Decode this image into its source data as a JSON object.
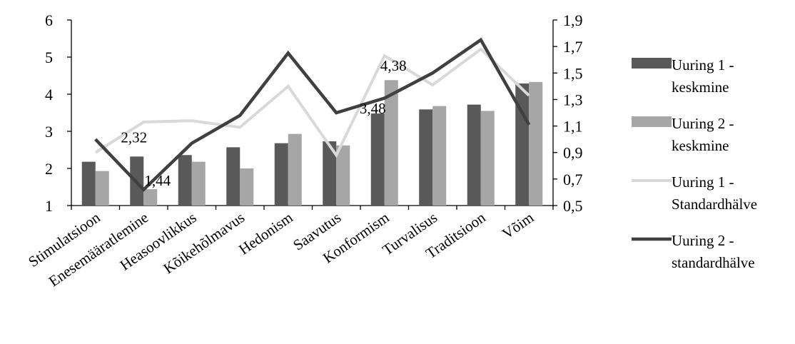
{
  "chart_data": {
    "type": "bar+line",
    "categories": [
      "Stimulatsioon",
      "Enesemääratlemine",
      "Heasoovlikkus",
      "Kõikehõlmavus",
      "Hedonism",
      "Saavutus",
      "Konformism",
      "Turvalisus",
      "Traditsioon",
      "Võim"
    ],
    "y_left": {
      "ylim": [
        1,
        6
      ],
      "ticks": [
        "1",
        "2",
        "3",
        "4",
        "5",
        "6"
      ]
    },
    "y_right": {
      "ylim": [
        0.5,
        1.9
      ],
      "ticks": [
        "0,5",
        "0,7",
        "0,9",
        "1,1",
        "1,3",
        "1,5",
        "1,7",
        "1,9"
      ]
    },
    "grid": false,
    "legend_position": "right",
    "series": [
      {
        "name": "Uuring 1 - keskmine",
        "name_lines": [
          "Uuring 1 -",
          "keskmine"
        ],
        "type": "bar",
        "axis": "left",
        "color": "#595959",
        "values": [
          2.18,
          2.32,
          2.36,
          2.57,
          2.68,
          2.73,
          3.48,
          3.59,
          3.72,
          4.29
        ]
      },
      {
        "name": "Uuring 2 - keskmine",
        "name_lines": [
          "Uuring 2 -",
          "keskmine"
        ],
        "type": "bar",
        "axis": "left",
        "color": "#a6a6a6",
        "values": [
          1.93,
          1.44,
          2.18,
          2.0,
          2.93,
          2.62,
          4.38,
          3.68,
          3.55,
          4.33
        ]
      },
      {
        "name": "Uuring 1 - Standardhälve",
        "name_lines": [
          "Uuring 1 -",
          "Standardhälve"
        ],
        "type": "line",
        "axis": "right",
        "color": "#d9d9d9",
        "values": [
          0.9,
          1.13,
          1.14,
          1.09,
          1.4,
          0.88,
          1.63,
          1.41,
          1.68,
          1.33
        ]
      },
      {
        "name": "Uuring 2 - standardhälve",
        "name_lines": [
          "Uuring 2 -",
          "standardhälve"
        ],
        "type": "line",
        "axis": "right",
        "color": "#404040",
        "values": [
          1.0,
          0.62,
          0.97,
          1.18,
          1.65,
          1.2,
          1.31,
          1.5,
          1.75,
          1.11
        ]
      }
    ],
    "data_labels": [
      {
        "text": "2,32",
        "series": 0,
        "index": 1
      },
      {
        "text": "1,44",
        "series": 1,
        "index": 1
      },
      {
        "text": "3,48",
        "series": 0,
        "index": 6
      },
      {
        "text": "4,38",
        "series": 1,
        "index": 6
      }
    ]
  }
}
